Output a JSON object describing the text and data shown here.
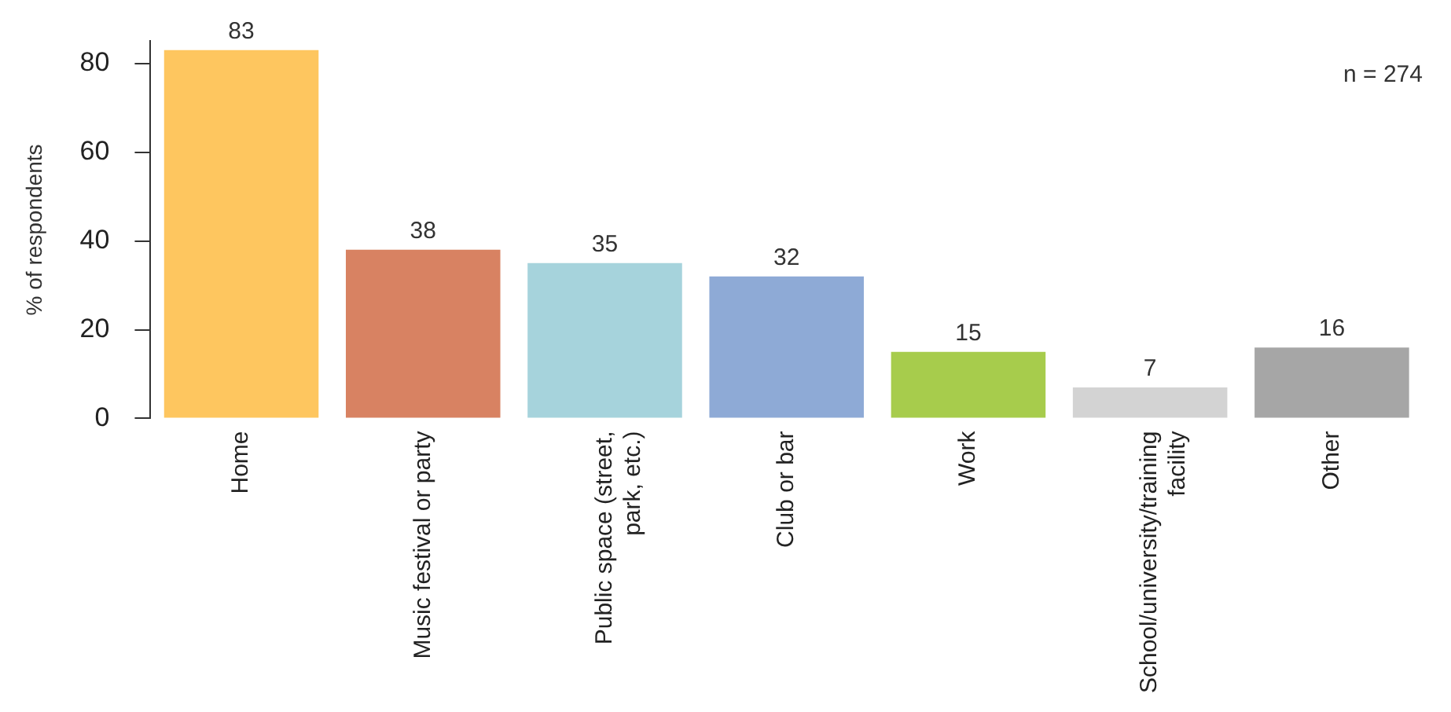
{
  "chart_data": {
    "type": "bar",
    "ylabel": "% of respondents",
    "categories": [
      "Home",
      "Music festival or party",
      "Public space (street,\npark, etc.)",
      "Club or bar",
      "Work",
      "School/university/training\nfacility",
      "Other"
    ],
    "values": [
      83,
      38,
      35,
      32,
      15,
      7,
      16
    ],
    "colors": [
      "#fec65f",
      "#d88262",
      "#a6d3dc",
      "#8eaad6",
      "#a7cc4c",
      "#d3d3d3",
      "#a6a6a6"
    ],
    "ylim": [
      0,
      85
    ],
    "yticks": [
      0,
      20,
      40,
      60,
      80
    ],
    "grid": false,
    "legend": false,
    "data_labels": true,
    "annotations": [
      "n = 274"
    ]
  }
}
